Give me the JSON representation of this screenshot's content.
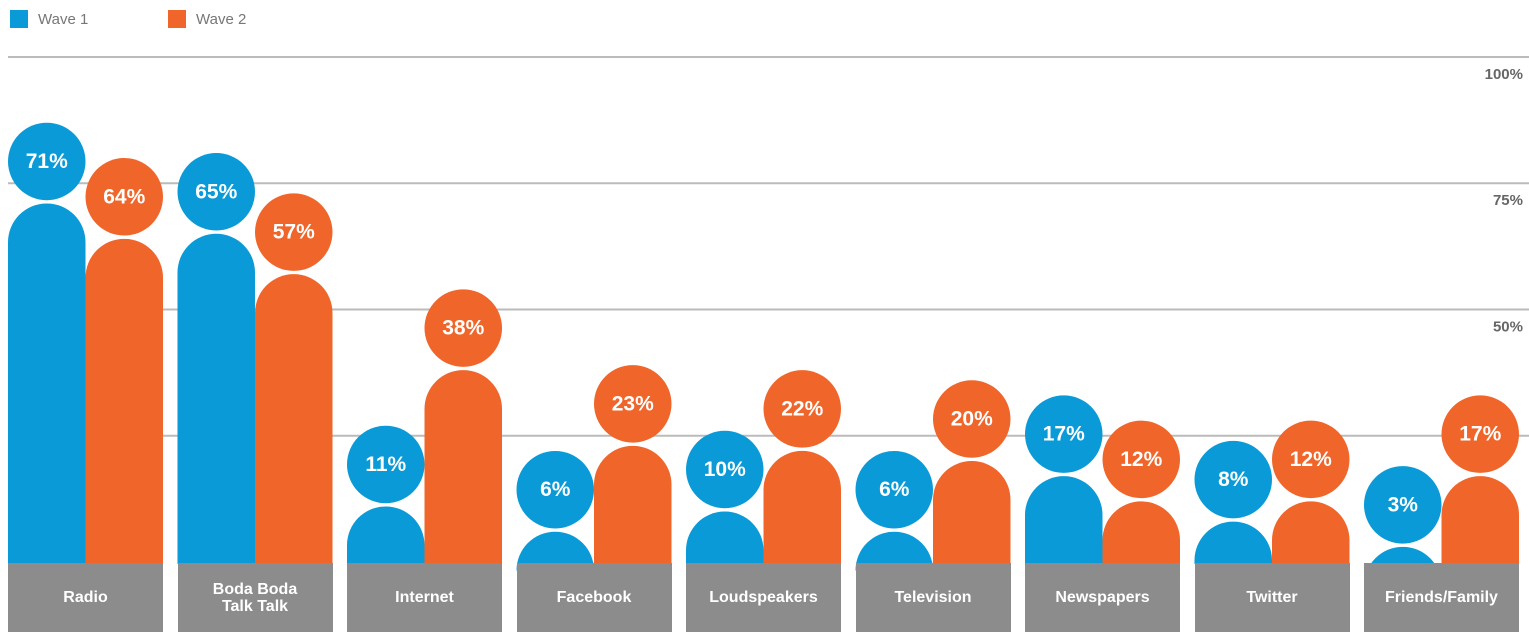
{
  "chart_data": {
    "type": "bar",
    "categories": [
      "Radio",
      "Boda Boda\nTalk Talk",
      "Internet",
      "Facebook",
      "Loudspeakers",
      "Television",
      "Newspapers",
      "Twitter",
      "Friends/Family"
    ],
    "series": [
      {
        "name": "Wave 1",
        "color": "#0a9ad7",
        "values": [
          71,
          65,
          11,
          6,
          10,
          6,
          17,
          8,
          3
        ],
        "value_labels": [
          "71%",
          "65%",
          "11%",
          "6%",
          "10%",
          "6%",
          "17%",
          "8%",
          "3%"
        ]
      },
      {
        "name": "Wave 2",
        "color": "#f0652a",
        "values": [
          64,
          57,
          38,
          23,
          22,
          20,
          12,
          12,
          17
        ],
        "value_labels": [
          "64%",
          "57%",
          "38%",
          "23%",
          "22%",
          "20%",
          "12%",
          "12%",
          "17%"
        ]
      }
    ],
    "ylim": [
      0,
      100
    ],
    "yticks": [
      {
        "value": 25,
        "label": null
      },
      {
        "value": 50,
        "label": "50%"
      },
      {
        "value": 75,
        "label": "75%"
      },
      {
        "value": 100,
        "label": "100%"
      }
    ],
    "grid": true,
    "legend": "top-left"
  }
}
